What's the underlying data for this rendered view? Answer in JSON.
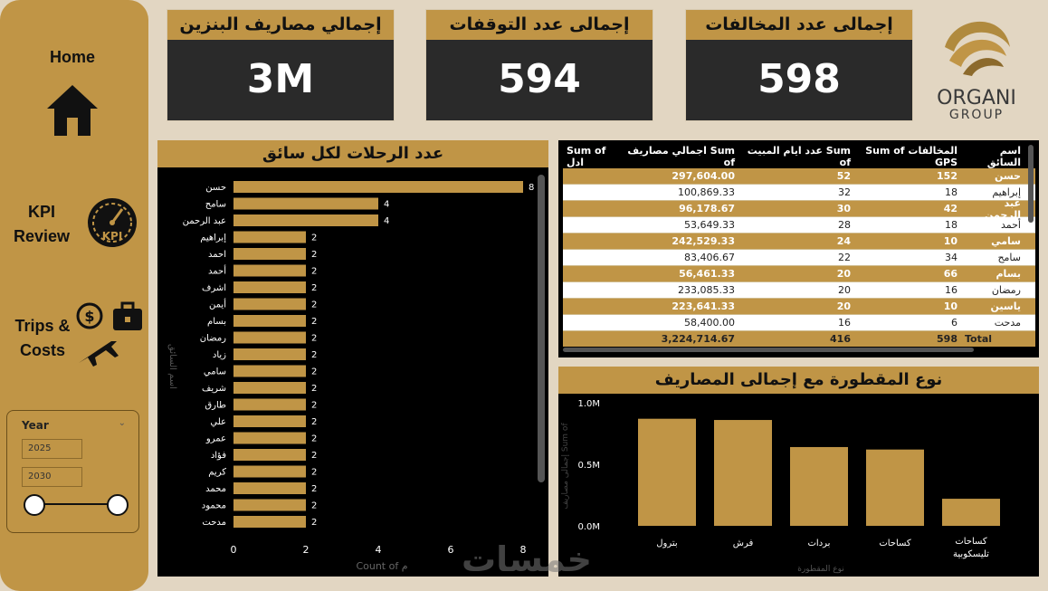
{
  "sidebar": {
    "home_label": "Home",
    "kpi_label_line1": "KPI",
    "kpi_label_line2": "Review",
    "kpi_badge": "KPI",
    "trips_label_line1": "Trips &",
    "trips_label_line2": "Costs",
    "year_slicer": {
      "title": "Year",
      "from": "2025",
      "to": "2030"
    }
  },
  "cards": [
    {
      "title": "إجمالي مصاريف البنزين",
      "value": "3M"
    },
    {
      "title": "إجمالى عدد التوقفات",
      "value": "594"
    },
    {
      "title": "إجمالى عدد المخالفات",
      "value": "598"
    }
  ],
  "logo": {
    "line1": "ORGANI",
    "line2": "GROUP"
  },
  "trips_chart": {
    "title": "عدد الرحلات لكل سائق",
    "xlabel": "Count of م",
    "ylabel": "اسم السائق",
    "xticks": [
      "0",
      "2",
      "4",
      "6",
      "8"
    ]
  },
  "table": {
    "headers": [
      "اسم السائق",
      "Sum of المخالفات GPS",
      "عدد ايام المبيت Sum of",
      "اجمالي مصاريف Sum of",
      "Sum of ادل"
    ],
    "rows": [
      [
        "حسن",
        "152",
        "52",
        "297,604.00"
      ],
      [
        "إبراهيم",
        "18",
        "32",
        "100,869.33"
      ],
      [
        "عبد الرحمن",
        "42",
        "30",
        "96,178.67"
      ],
      [
        "أحمد",
        "18",
        "28",
        "53,649.33"
      ],
      [
        "سامي",
        "10",
        "24",
        "242,529.33"
      ],
      [
        "سامح",
        "34",
        "22",
        "83,406.67"
      ],
      [
        "بسام",
        "66",
        "20",
        "56,461.33"
      ],
      [
        "رمضان",
        "16",
        "20",
        "233,085.33"
      ],
      [
        "ياسين",
        "10",
        "20",
        "223,641.33"
      ],
      [
        "مدحت",
        "6",
        "16",
        "58,400.00"
      ]
    ],
    "total": [
      "Total",
      "598",
      "416",
      "3,224,714.67"
    ]
  },
  "expense_chart": {
    "title": "نوع المقطورة مع إجمالى المصاريف",
    "xlabel": "نوع المقطورة",
    "ylabel": "إجمالى مصاريف Sum of",
    "yticks": [
      "0.0M",
      "0.5M",
      "1.0M"
    ]
  },
  "watermark": "خمسات",
  "chart_data": [
    {
      "type": "bar",
      "orientation": "horizontal",
      "title": "عدد الرحلات لكل سائق",
      "xlabel": "Count of م",
      "ylabel": "اسم السائق",
      "categories": [
        "حسن",
        "سامح",
        "عبد الرحمن",
        "إبراهيم",
        "احمد",
        "أحمد",
        "اشرف",
        "أيمن",
        "بسام",
        "رمضان",
        "زياد",
        "سامي",
        "شريف",
        "طارق",
        "علي",
        "عمرو",
        "فؤاد",
        "كريم",
        "محمد",
        "محمود",
        "مدحت"
      ],
      "values": [
        8,
        4,
        4,
        2,
        2,
        2,
        2,
        2,
        2,
        2,
        2,
        2,
        2,
        2,
        2,
        2,
        2,
        2,
        2,
        2,
        2
      ],
      "xlim": [
        0,
        8
      ],
      "color": "#c09546"
    },
    {
      "type": "bar",
      "title": "نوع المقطورة مع إجمالى المصاريف",
      "xlabel": "نوع المقطورة",
      "ylabel": "إجمالى مصاريف Sum of",
      "categories": [
        "بترول",
        "فرش",
        "بردات",
        "كساحات",
        "كساحات تليسكوبية"
      ],
      "values": [
        0.87,
        0.86,
        0.64,
        0.62,
        0.22
      ],
      "ylim": [
        0,
        1.0
      ],
      "units": "M",
      "color": "#c09546"
    }
  ]
}
